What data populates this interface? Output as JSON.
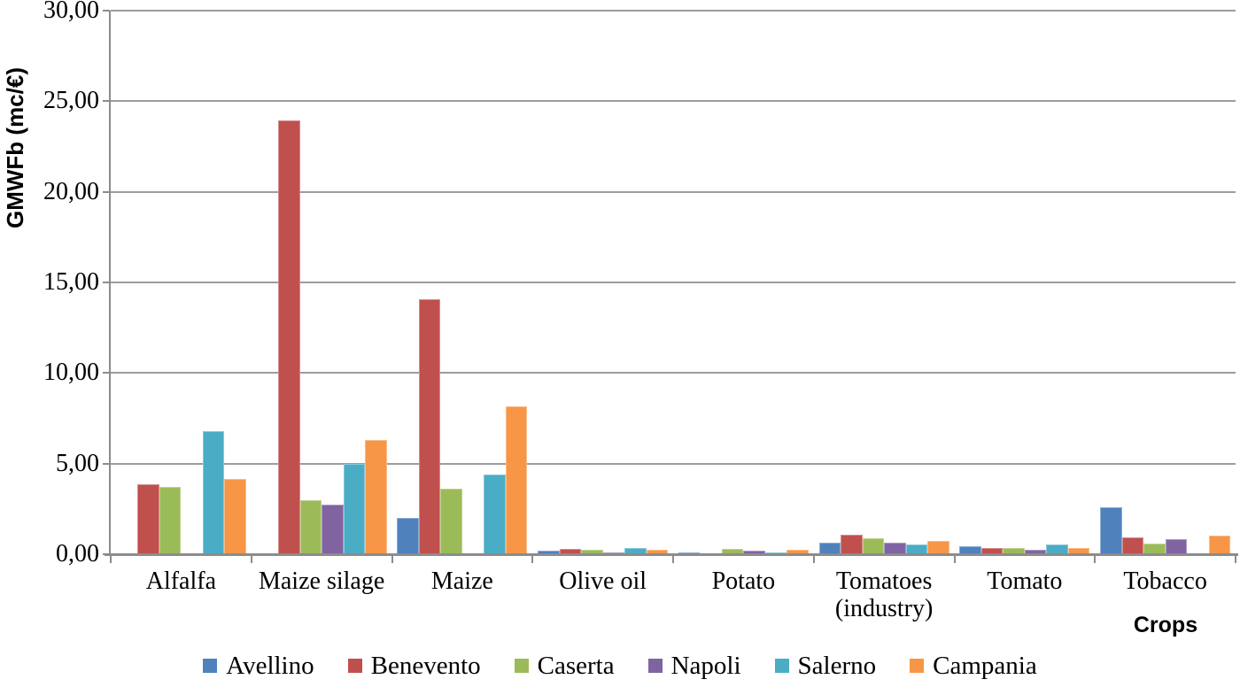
{
  "chart_data": {
    "type": "bar",
    "title": "",
    "xlabel": "Crops",
    "ylabel": "GMWFb (mc/€)",
    "ylim": [
      0,
      30
    ],
    "ytick_step": 5,
    "ytick_labels": [
      "0,00",
      "5,00",
      "10,00",
      "15,00",
      "20,00",
      "25,00",
      "30,00"
    ],
    "grid": true,
    "legend_position": "bottom",
    "categories": [
      "Alfalfa",
      "Maize silage",
      "Maize",
      "Olive oil",
      "Potato",
      "Tomatoes\n(industry)",
      "Tomato",
      "Tobacco"
    ],
    "series": [
      {
        "name": "Avellino",
        "color": "#4F81BD",
        "values": [
          0,
          0,
          2.0,
          0.2,
          0.12,
          0.62,
          0.45,
          2.6
        ]
      },
      {
        "name": "Benevento",
        "color": "#C0504D",
        "values": [
          3.85,
          23.95,
          14.05,
          0.27,
          0,
          1.1,
          0.33,
          0.95
        ]
      },
      {
        "name": "Caserta",
        "color": "#9BBB59",
        "values": [
          3.7,
          3.0,
          3.6,
          0.25,
          0.3,
          0.9,
          0.33,
          0.6
        ]
      },
      {
        "name": "Napoli",
        "color": "#8064A2",
        "values": [
          0,
          2.75,
          0,
          0.1,
          0.22,
          0.65,
          0.25,
          0.82
        ]
      },
      {
        "name": "Salerno",
        "color": "#4BACC6",
        "values": [
          6.8,
          5.0,
          4.4,
          0.35,
          0.08,
          0.55,
          0.52,
          0
        ]
      },
      {
        "name": "Campania",
        "color": "#F79646",
        "values": [
          4.15,
          6.3,
          8.15,
          0.25,
          0.25,
          0.75,
          0.35,
          1.05
        ]
      }
    ],
    "colors": {
      "gridline": "#9c9c9c",
      "axis_line": "#8c8c8c",
      "text": "#000000"
    }
  }
}
